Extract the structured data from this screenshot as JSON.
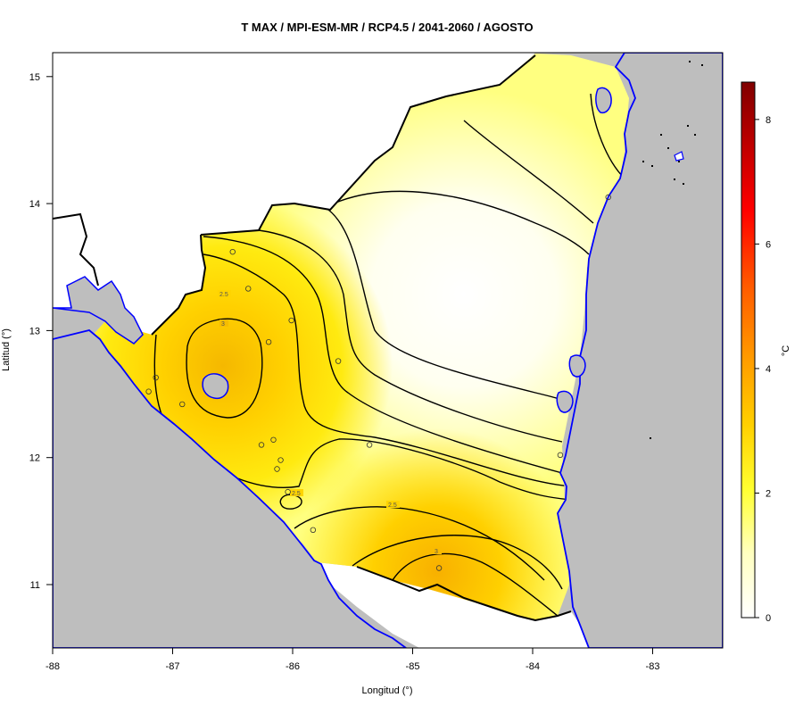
{
  "title": "T MAX / MPI-ESM-MR / RCP4.5 / 2041-2060 / AGOSTO",
  "xlabel": "Longitud (°)",
  "ylabel": "Latitud (°)",
  "colorbar": {
    "unit": "°C",
    "ticks": [
      "0",
      "2",
      "4",
      "6",
      "8"
    ],
    "range": [
      0,
      8.6
    ]
  },
  "x_ticks": [
    {
      "value": -88,
      "label": "-88"
    },
    {
      "value": -87,
      "label": "-87"
    },
    {
      "value": -86,
      "label": "-86"
    },
    {
      "value": -85,
      "label": "-85"
    },
    {
      "value": -84,
      "label": "-84"
    },
    {
      "value": -83,
      "label": "-83"
    }
  ],
  "y_ticks": [
    {
      "value": 11,
      "label": "11"
    },
    {
      "value": 12,
      "label": "12"
    },
    {
      "value": 13,
      "label": "13"
    },
    {
      "value": 14,
      "label": "14"
    },
    {
      "value": 15,
      "label": "15"
    }
  ],
  "contour_labels": [
    "2.5",
    "3",
    "2.5",
    "2.5",
    "3"
  ],
  "colors": {
    "ocean": "#bebebe",
    "coast": "#0000ff",
    "border": "#000000",
    "scale_low": "#ffffff",
    "scale_mid": "#ffff00",
    "scale_high": "#8b0000"
  },
  "stations": [
    {
      "lon": -86.5,
      "lat": 13.62
    },
    {
      "lon": -86.37,
      "lat": 13.33
    },
    {
      "lon": -86.01,
      "lat": 13.08
    },
    {
      "lon": -86.2,
      "lat": 12.91
    },
    {
      "lon": -85.62,
      "lat": 12.76
    },
    {
      "lon": -87.14,
      "lat": 12.63
    },
    {
      "lon": -87.2,
      "lat": 12.52
    },
    {
      "lon": -86.92,
      "lat": 12.42
    },
    {
      "lon": -86.16,
      "lat": 12.14
    },
    {
      "lon": -86.26,
      "lat": 12.1
    },
    {
      "lon": -85.36,
      "lat": 12.1
    },
    {
      "lon": -86.1,
      "lat": 11.98
    },
    {
      "lon": -86.13,
      "lat": 11.91
    },
    {
      "lon": -86.04,
      "lat": 11.73
    },
    {
      "lon": -85.83,
      "lat": 11.43
    },
    {
      "lon": -84.78,
      "lat": 11.13
    },
    {
      "lon": -83.77,
      "lat": 12.02
    },
    {
      "lon": -83.37,
      "lat": 14.05
    }
  ]
}
